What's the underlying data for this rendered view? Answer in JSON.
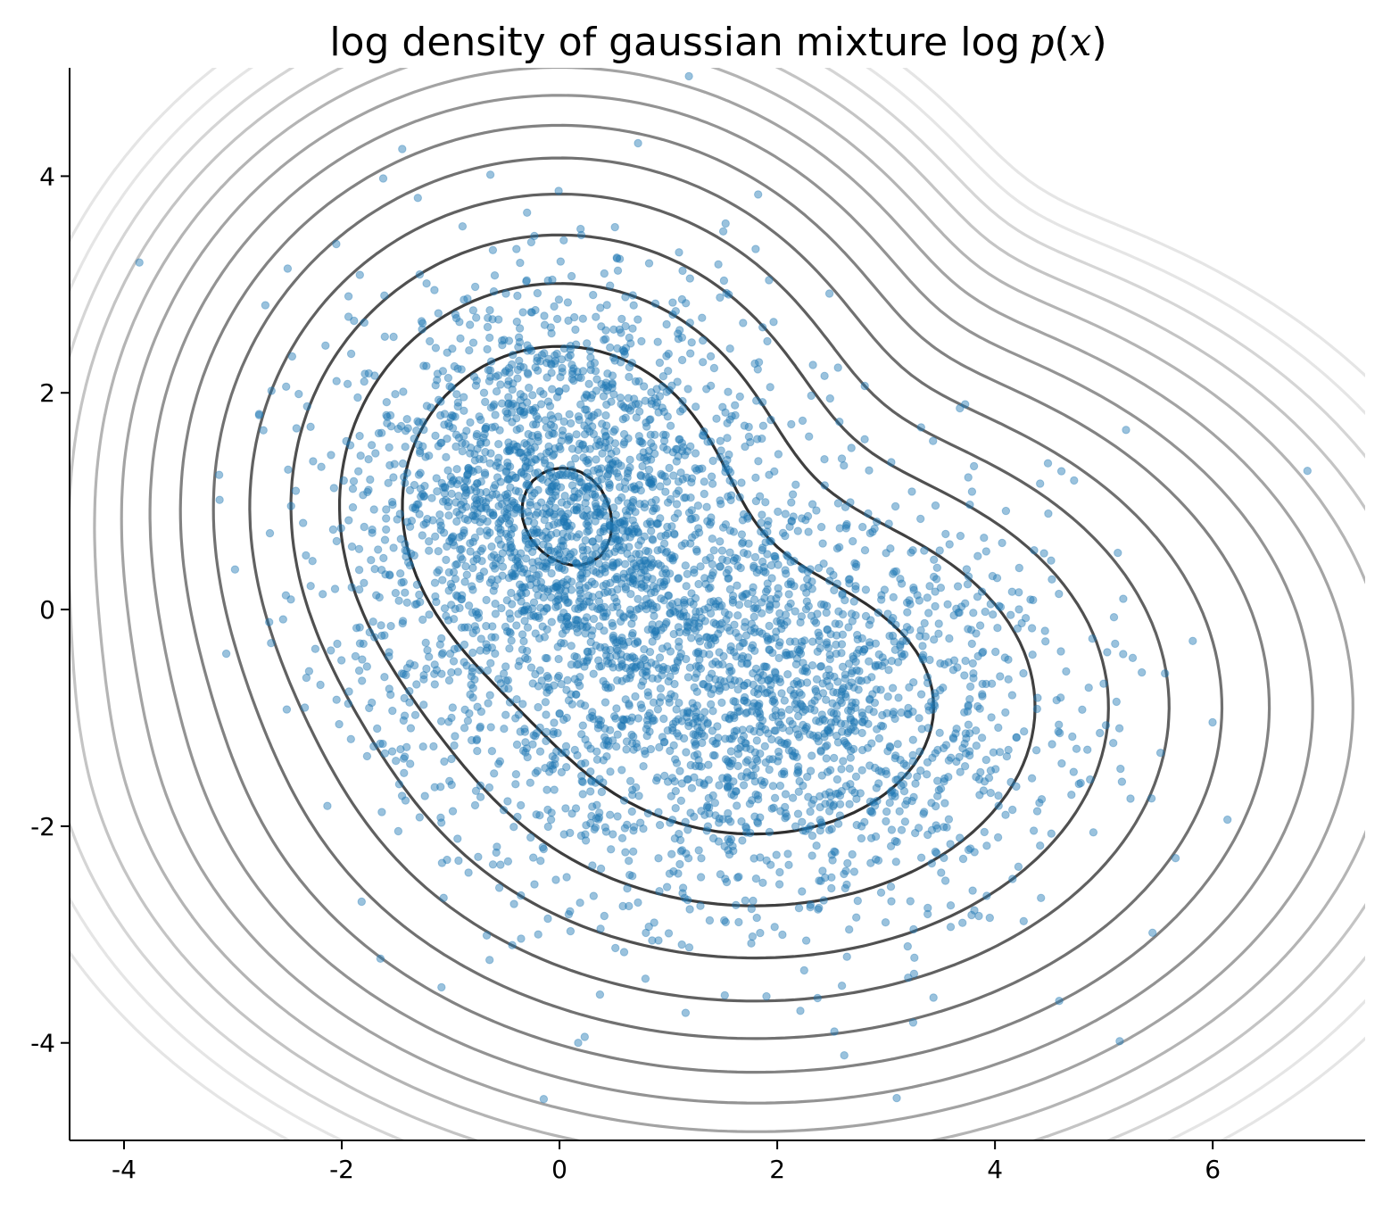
{
  "chart_data": {
    "type": "scatter",
    "title": "log density of gaussian mixture log p(x)",
    "title_parts": {
      "text": "log density of gaussian mixture ",
      "math_log": "log",
      "math_p": "p",
      "math_open": "(",
      "math_x": "x",
      "math_close": ")"
    },
    "xlabel": "",
    "ylabel": "",
    "xlim": [
      -4.5,
      7.4
    ],
    "ylim": [
      -4.9,
      5.0
    ],
    "xticks": [
      -4,
      -2,
      0,
      2,
      4,
      6
    ],
    "xtick_labels": [
      "-4",
      "-2",
      "0",
      "2",
      "4",
      "6"
    ],
    "yticks": [
      -4,
      -2,
      0,
      2,
      4
    ],
    "ytick_labels": [
      "-4",
      "-2",
      "0",
      "2",
      "4"
    ],
    "grid": false,
    "spines": [
      "left",
      "bottom"
    ],
    "mixture_components": [
      {
        "weight": 0.5,
        "mean": [
          0.0,
          1.0
        ],
        "std": [
          1.0,
          1.0
        ]
      },
      {
        "weight": 0.5,
        "mean": [
          1.8,
          -0.9
        ],
        "std": [
          1.4,
          1.0
        ]
      }
    ],
    "contour": {
      "levels_max_log_density": -2.55,
      "level_spacing": 1.0,
      "level_count": 14,
      "line_color": "#000000"
    },
    "scatter": {
      "color": "#1f77b4",
      "alpha": 0.45,
      "approx_count": 4000
    }
  }
}
